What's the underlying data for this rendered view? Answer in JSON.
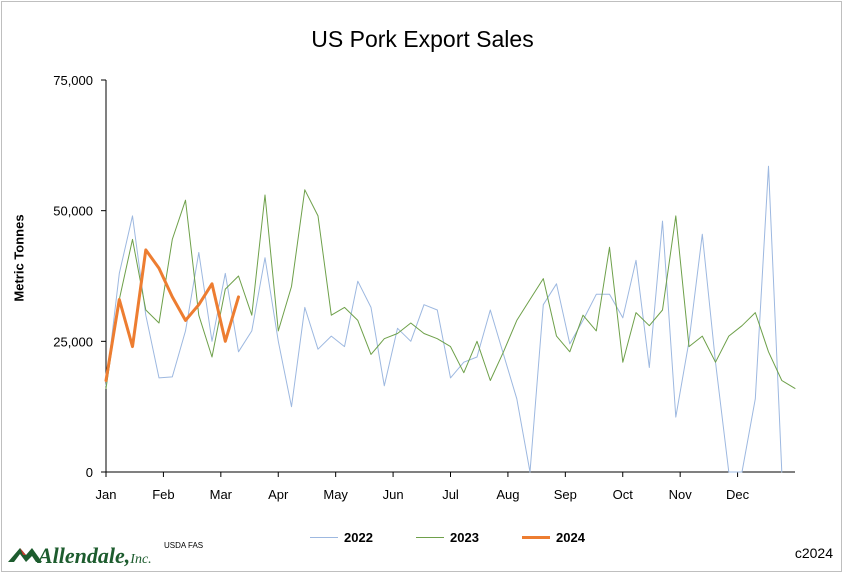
{
  "chart_data": {
    "type": "line",
    "title": "US Pork Export Sales",
    "ylabel": "Metric Tonnes",
    "ylim": [
      0,
      75000
    ],
    "yticks": [
      0,
      25000,
      50000,
      75000
    ],
    "ytick_labels": [
      "0",
      "25,000",
      "50,000",
      "75,000"
    ],
    "x_unit": "week",
    "xlim": [
      1,
      53
    ],
    "month_labels": [
      "Jan",
      "Feb",
      "Mar",
      "Apr",
      "May",
      "Jun",
      "Jul",
      "Aug",
      "Sep",
      "Oct",
      "Nov",
      "Dec"
    ],
    "grid": false,
    "legend_position": "bottom",
    "series": [
      {
        "name": "2022",
        "color": "#9db8e0",
        "width": 1,
        "values": [
          16500,
          38000,
          49000,
          30000,
          18000,
          18200,
          27000,
          42000,
          25000,
          38000,
          23000,
          27000,
          41000,
          25000,
          12500,
          31500,
          23500,
          26000,
          24000,
          36500,
          31500,
          16500,
          27500,
          25000,
          32000,
          31000,
          18000,
          21000,
          22000,
          31000,
          22500,
          14000,
          0,
          32000,
          36000,
          24500,
          29000,
          34000,
          34000,
          29500,
          40500,
          20000,
          48000,
          10500,
          25000,
          45500,
          21000,
          0,
          0,
          14000,
          58500,
          0
        ]
      },
      {
        "name": "2023",
        "color": "#6ea04a",
        "width": 1,
        "values": [
          16000,
          33000,
          44500,
          31000,
          28500,
          44500,
          52000,
          30000,
          22000,
          35000,
          37500,
          30000,
          53000,
          27000,
          35500,
          54000,
          49000,
          30000,
          31500,
          29000,
          22500,
          25500,
          26500,
          28500,
          26500,
          25500,
          24000,
          19000,
          25000,
          17500,
          23000,
          29000,
          33000,
          37000,
          26000,
          23000,
          30000,
          27000,
          43000,
          21000,
          30500,
          28000,
          31000,
          49000,
          24000,
          26000,
          21000,
          26000,
          28000,
          30500,
          23000,
          17500,
          16000
        ]
      },
      {
        "name": "2024",
        "color": "#ed7d31",
        "width": 3,
        "values": [
          17500,
          33000,
          24000,
          42500,
          39000,
          33500,
          29000,
          32000,
          36000,
          25000,
          33500
        ]
      }
    ]
  },
  "footer": {
    "brand_name": "Allendale,",
    "brand_suffix": "Inc.",
    "source": "USDA FAS",
    "copyright": "c2024"
  },
  "logo_colors": {
    "green": "#1d5c2e",
    "red": "#c0392b"
  }
}
